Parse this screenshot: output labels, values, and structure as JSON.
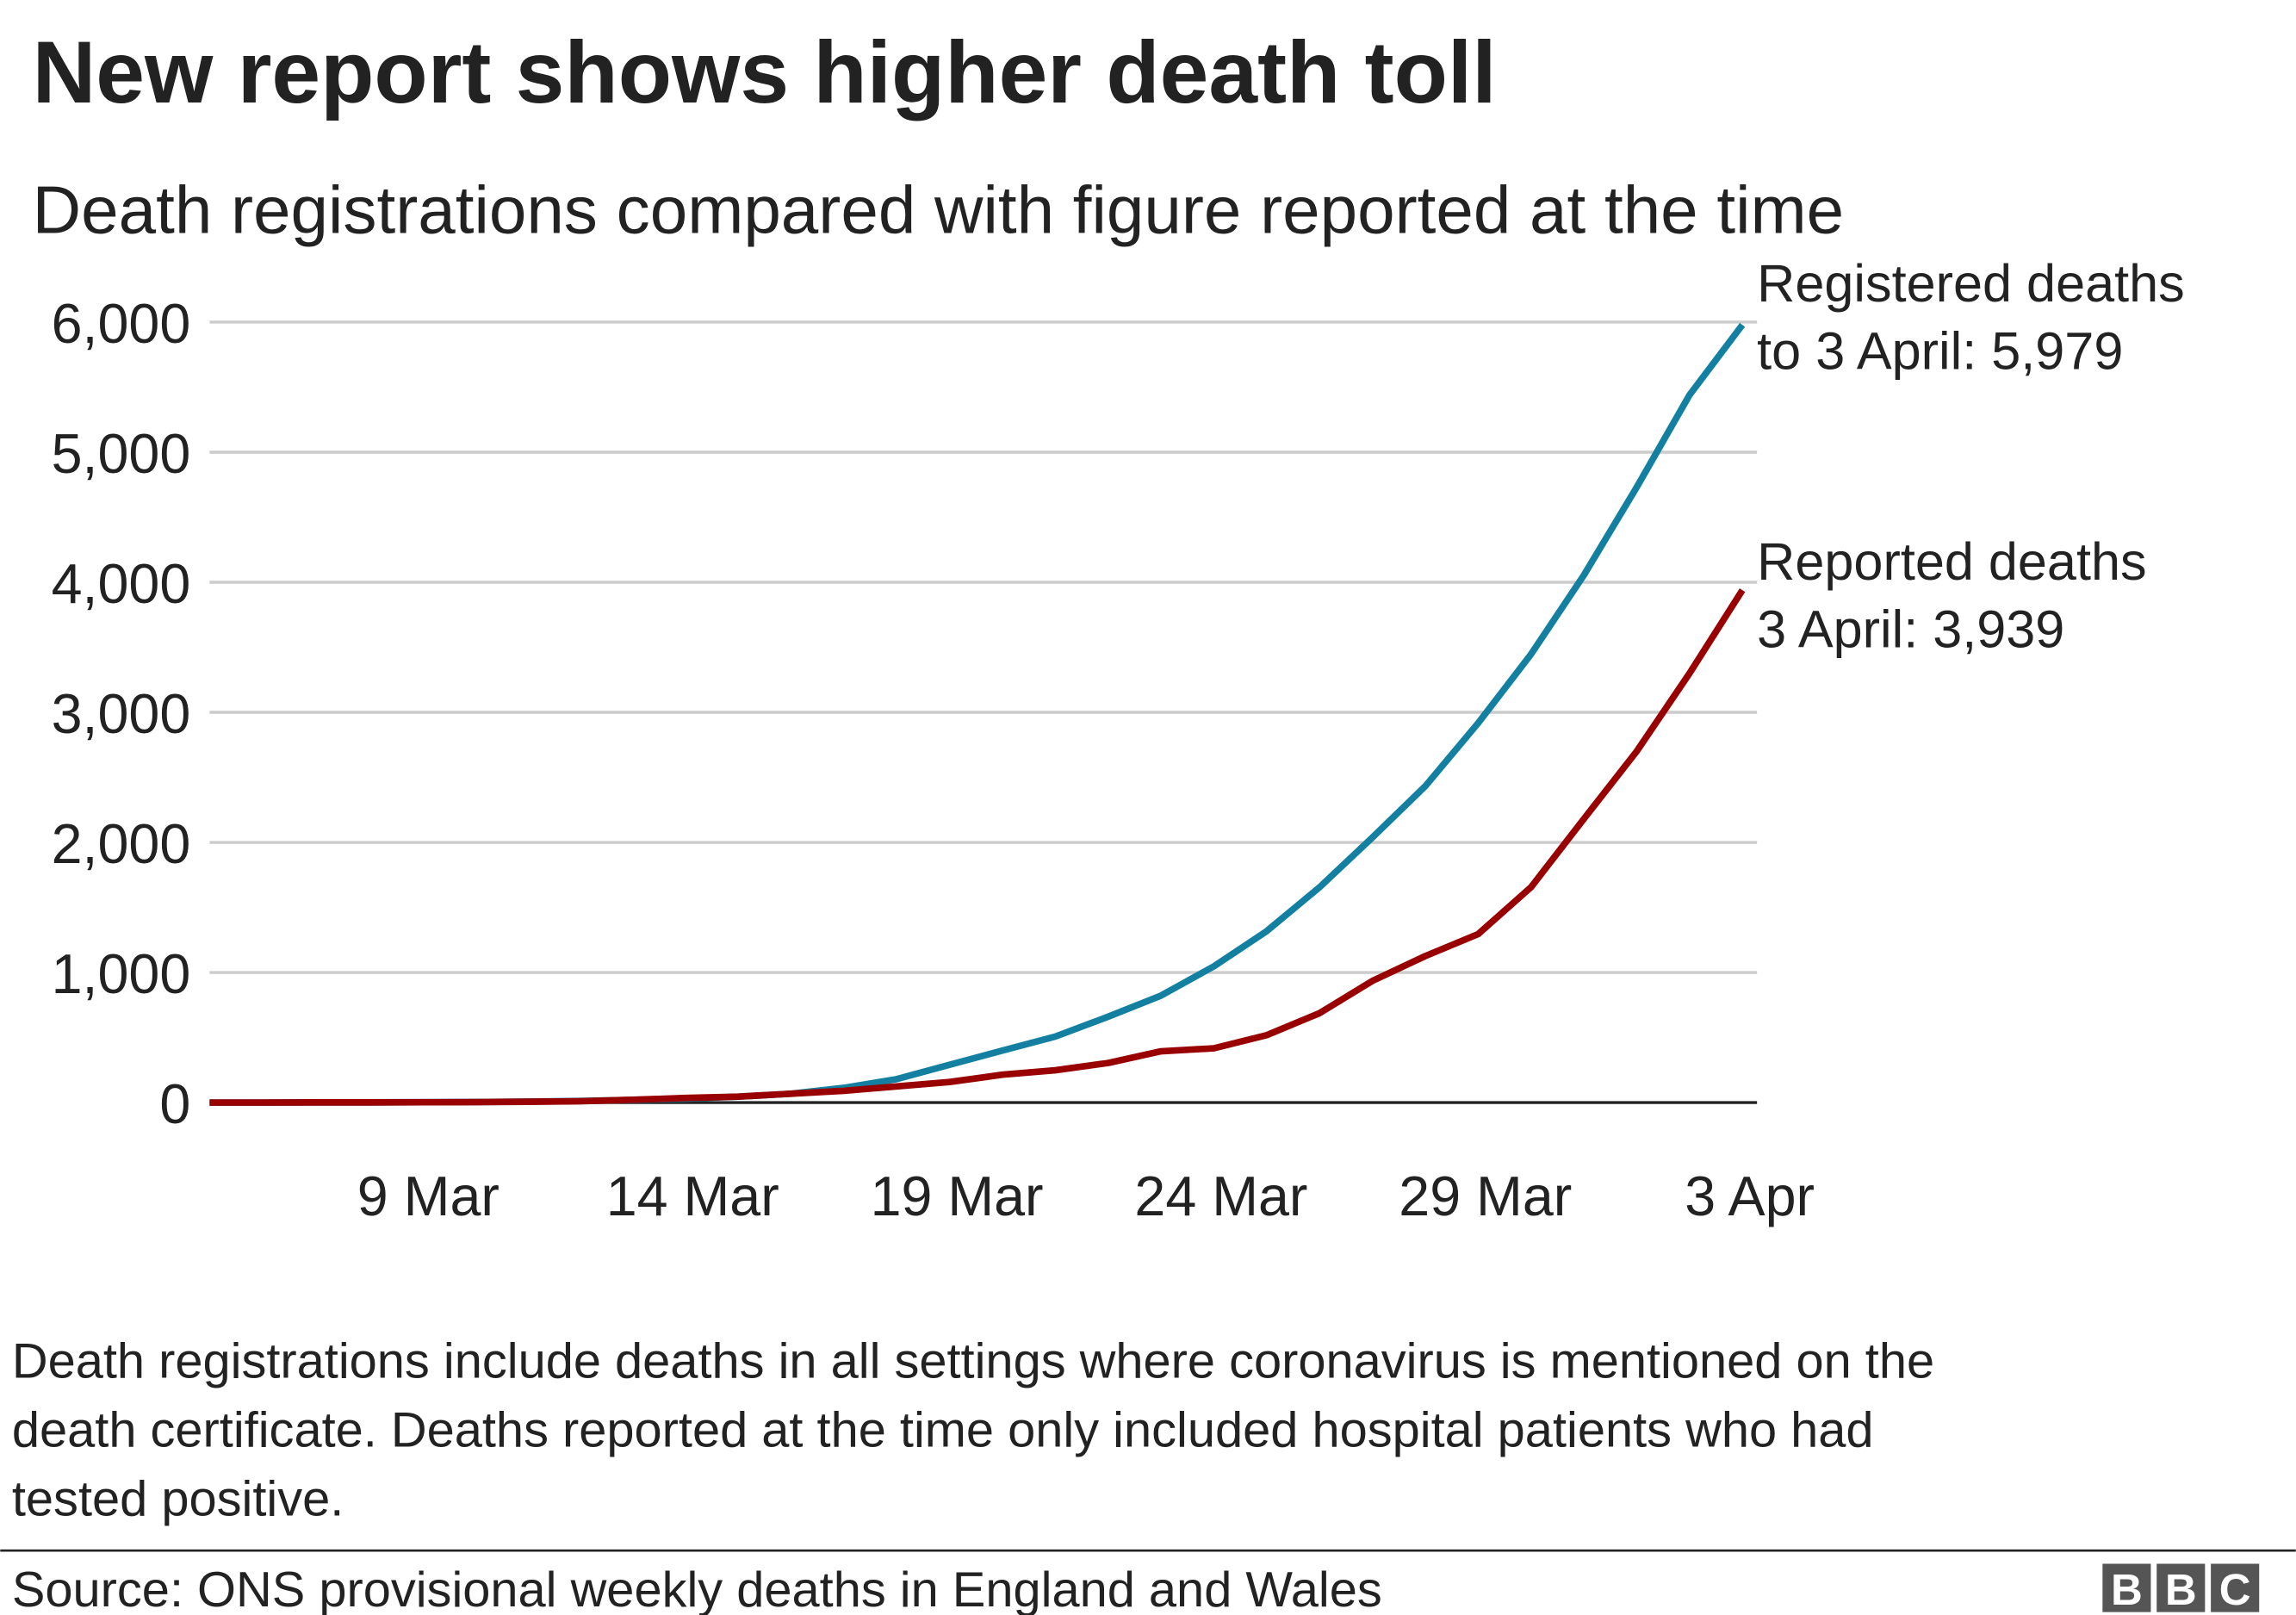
{
  "chart_data": {
    "type": "line",
    "title": "New report shows higher death toll",
    "subtitle": "Death registrations compared with figure reported at the time",
    "categories": [
      null,
      null,
      null,
      null,
      "9 Mar",
      null,
      null,
      null,
      null,
      "14 Mar",
      null,
      null,
      null,
      null,
      "19 Mar",
      null,
      null,
      null,
      null,
      "24 Mar",
      null,
      null,
      null,
      null,
      "29 Mar",
      null,
      null,
      null,
      null,
      "3 Apr"
    ],
    "series": [
      {
        "name": "Registered deaths",
        "color": "#1380a1",
        "values": [
          0,
          0,
          1,
          1,
          2,
          4,
          7,
          12,
          20,
          30,
          45,
          68,
          113,
          180,
          290,
          400,
          507,
          660,
          822,
          1047,
          1318,
          1655,
          2038,
          2432,
          2917,
          3446,
          4054,
          4730,
          5440,
          5979
        ]
      },
      {
        "name": "Reported deaths",
        "color": "#990000",
        "values": [
          0,
          0,
          1,
          1,
          2,
          3,
          6,
          10,
          21,
          35,
          45,
          68,
          90,
          124,
          158,
          214,
          248,
          304,
          394,
          417,
          518,
          687,
          935,
          1126,
          1295,
          1655,
          2180,
          2700,
          3300,
          3939
        ]
      }
    ],
    "annotations": [
      {
        "lines": [
          "Registered deaths",
          "to 3 April: 5,979"
        ]
      },
      {
        "lines": [
          "Reported deaths",
          "3 April: 3,939"
        ]
      }
    ],
    "ylim": [
      0,
      6000
    ],
    "yticks": [
      0,
      {
        "value": 1000,
        "label": "1,000"
      },
      {
        "value": 2000,
        "label": "2,000"
      },
      {
        "value": 3000,
        "label": "3,000"
      },
      {
        "value": 4000,
        "label": "4,000"
      },
      {
        "value": 5000,
        "label": "5,000"
      },
      {
        "value": 6000,
        "label": "6,000"
      }
    ],
    "grid": true,
    "note": [
      "Death registrations include deaths in all settings where coronavirus is mentioned on the",
      "death certificate. Deaths reported at the time only included hospital patients who had",
      "tested positive."
    ],
    "source": "Source: ONS provisional weekly deaths in England and Wales",
    "logo": [
      "B",
      "B",
      "C"
    ]
  }
}
